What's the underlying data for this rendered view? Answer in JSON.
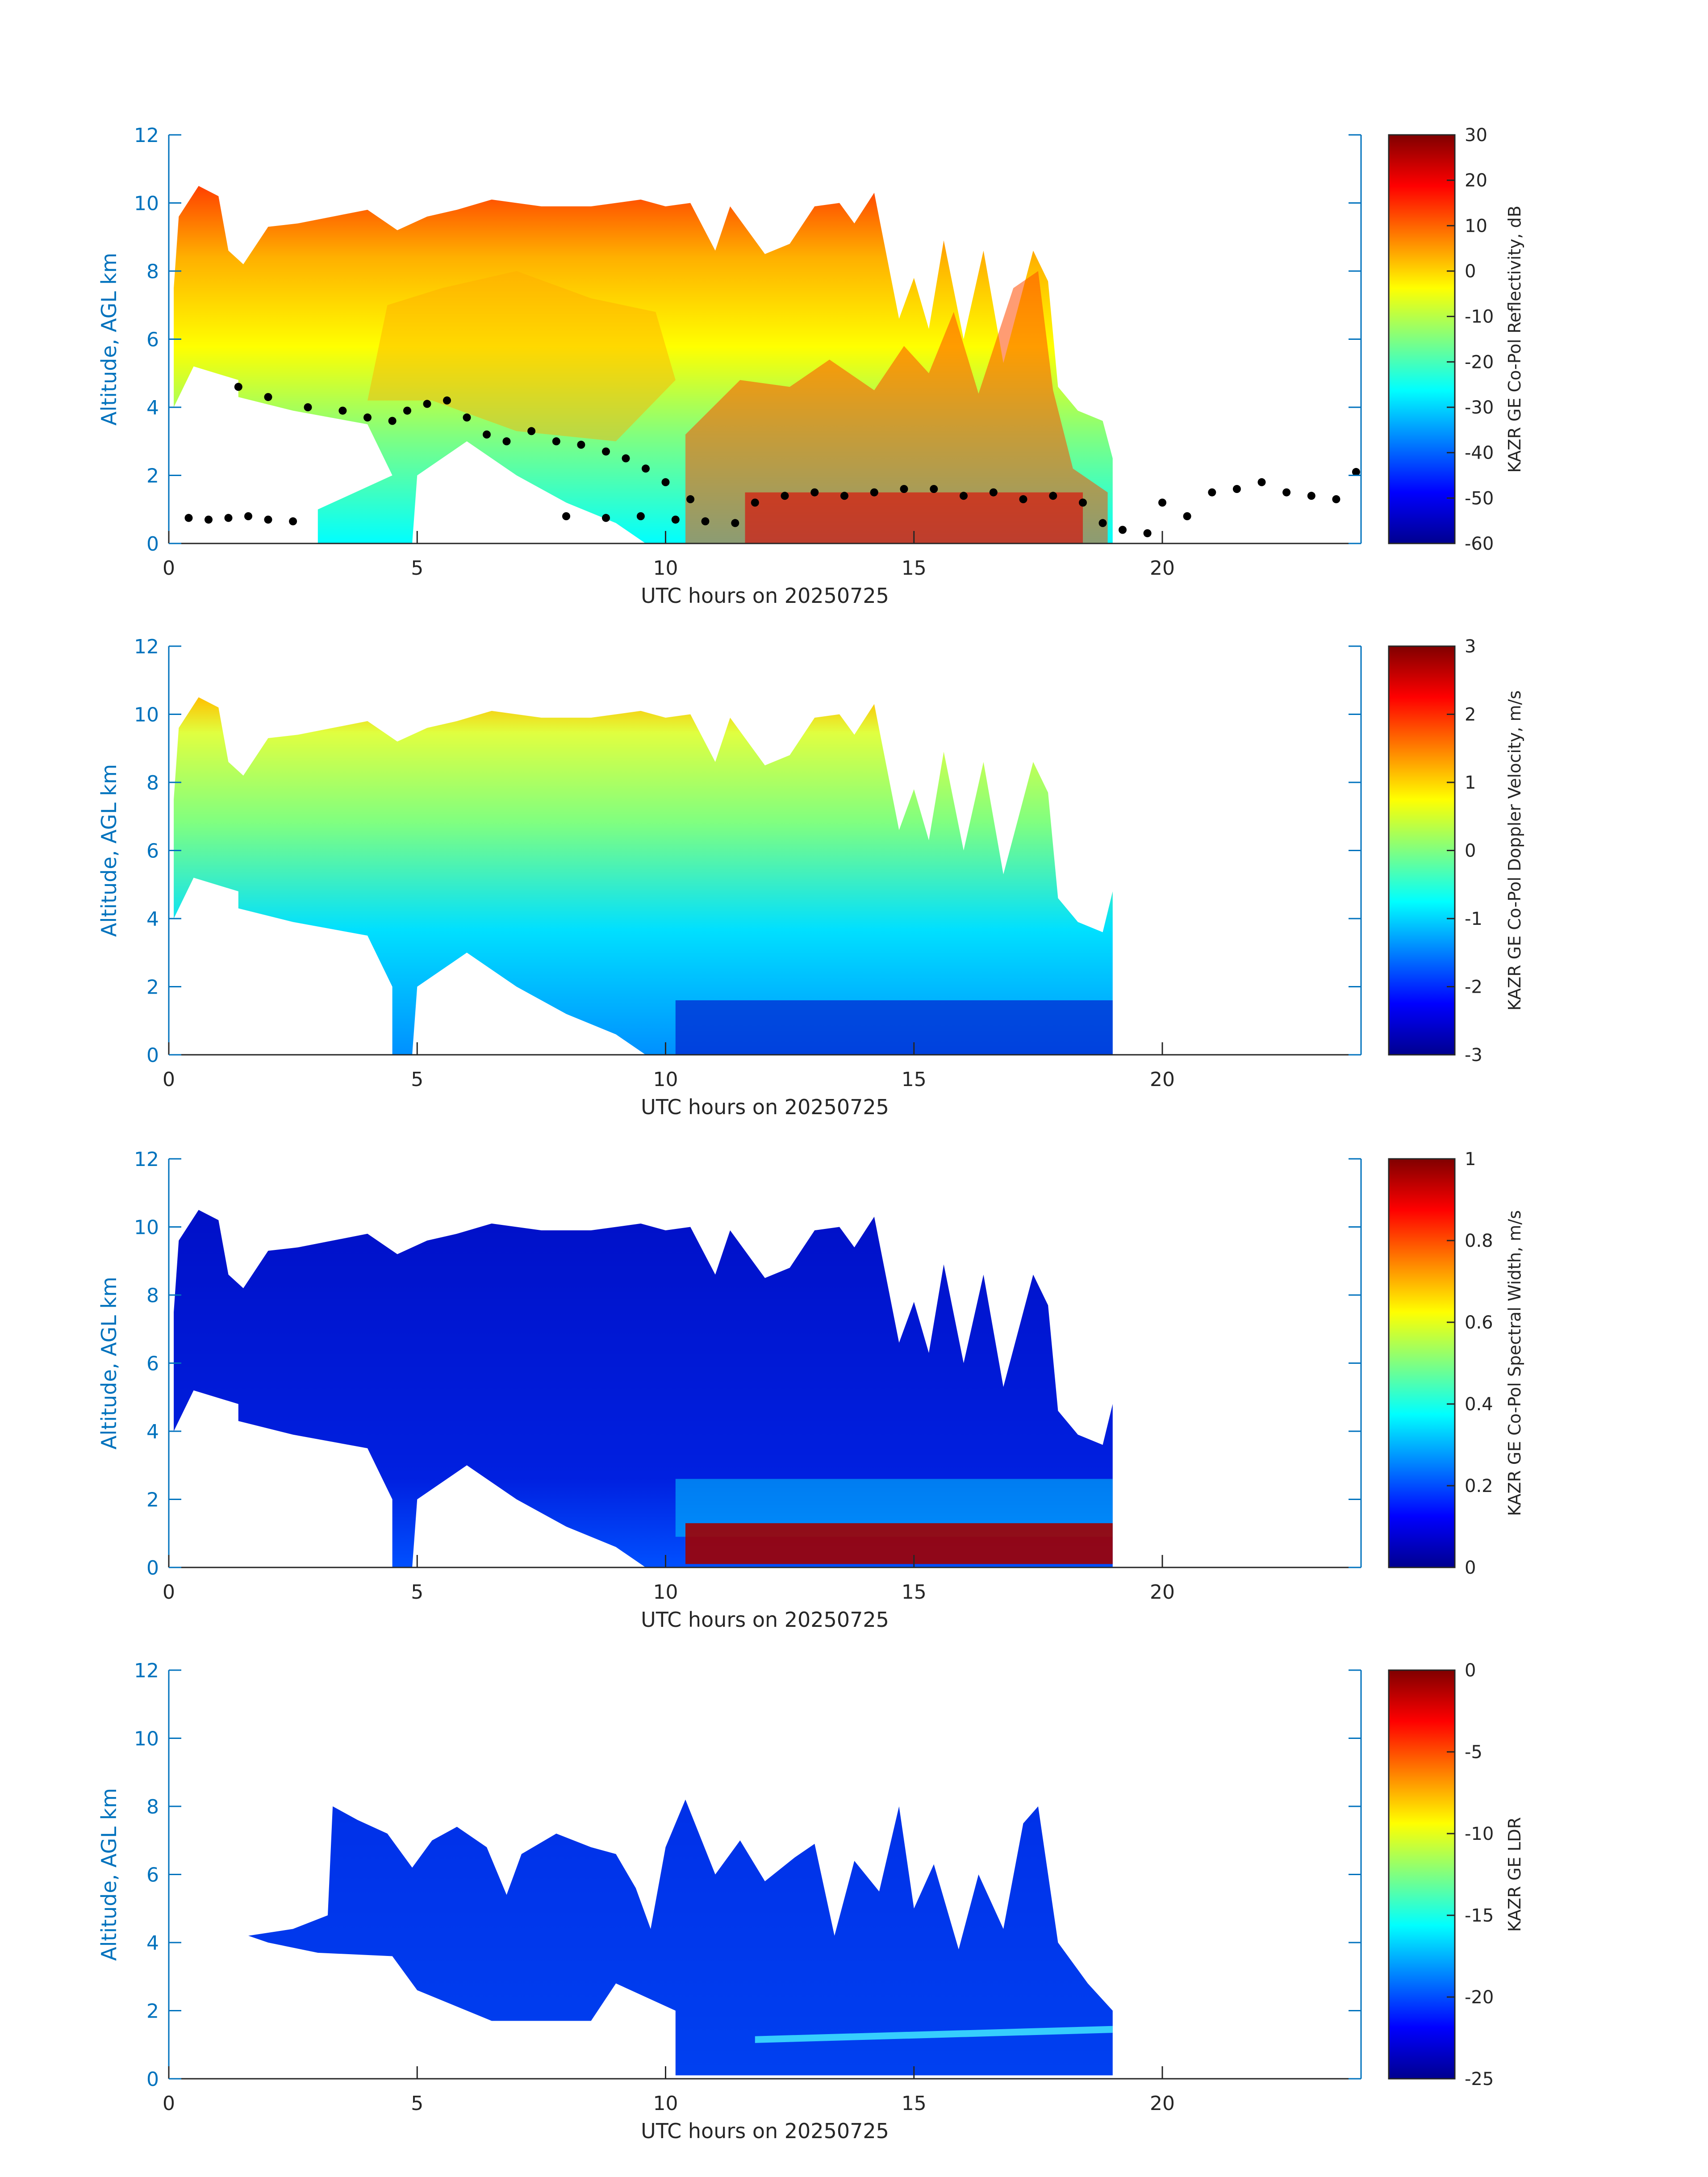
{
  "figure": {
    "colors": {
      "axis": "#0072BD",
      "text": "#262626",
      "background": "#ffffff",
      "overlay_points": "#000000"
    },
    "colormap": "jet"
  },
  "chart_data": [
    {
      "type": "heatmap",
      "title": "",
      "xlabel": "UTC hours on 20250725",
      "ylabel": "Altitude, AGL km",
      "xlim": [
        0,
        24
      ],
      "ylim": [
        0,
        12
      ],
      "xticks": [
        "0",
        "5",
        "10",
        "15",
        "20"
      ],
      "yticks": [
        "0",
        "2",
        "4",
        "6",
        "8",
        "10",
        "12"
      ],
      "colorbar": {
        "label": "KAZR GE Co-Pol Reflectivity, dB",
        "range": [
          -60,
          30
        ],
        "ticks": [
          "30",
          "20",
          "10",
          "0",
          "-10",
          "-20",
          "-30",
          "-40",
          "-50",
          "-60"
        ]
      },
      "grid": false,
      "overlay": {
        "type": "scatter",
        "description_key": "cloud-base points",
        "points": [
          [
            0.4,
            0.75
          ],
          [
            0.8,
            0.7
          ],
          [
            1.2,
            0.75
          ],
          [
            1.6,
            0.8
          ],
          [
            2.0,
            0.7
          ],
          [
            2.5,
            0.65
          ],
          [
            1.4,
            4.6
          ],
          [
            2.0,
            4.3
          ],
          [
            2.8,
            4.0
          ],
          [
            3.5,
            3.9
          ],
          [
            4.0,
            3.7
          ],
          [
            4.5,
            3.6
          ],
          [
            4.8,
            3.9
          ],
          [
            5.2,
            4.1
          ],
          [
            5.6,
            4.2
          ],
          [
            6.0,
            3.7
          ],
          [
            6.4,
            3.2
          ],
          [
            6.8,
            3.0
          ],
          [
            7.3,
            3.3
          ],
          [
            7.8,
            3.0
          ],
          [
            8.3,
            2.9
          ],
          [
            8.8,
            2.7
          ],
          [
            9.2,
            2.5
          ],
          [
            9.6,
            2.2
          ],
          [
            10.0,
            1.8
          ],
          [
            10.5,
            1.3
          ],
          [
            8.0,
            0.8
          ],
          [
            8.8,
            0.75
          ],
          [
            9.5,
            0.8
          ],
          [
            10.2,
            0.7
          ],
          [
            10.8,
            0.65
          ],
          [
            11.4,
            0.6
          ],
          [
            11.8,
            1.2
          ],
          [
            12.4,
            1.4
          ],
          [
            13.0,
            1.5
          ],
          [
            13.6,
            1.4
          ],
          [
            14.2,
            1.5
          ],
          [
            14.8,
            1.6
          ],
          [
            15.4,
            1.6
          ],
          [
            16.0,
            1.4
          ],
          [
            16.6,
            1.5
          ],
          [
            17.2,
            1.3
          ],
          [
            17.8,
            1.4
          ],
          [
            18.4,
            1.2
          ],
          [
            18.8,
            0.6
          ],
          [
            19.2,
            0.4
          ],
          [
            19.7,
            0.3
          ],
          [
            20.0,
            1.2
          ],
          [
            20.5,
            0.8
          ],
          [
            21.0,
            1.5
          ],
          [
            21.5,
            1.6
          ],
          [
            22.0,
            1.8
          ],
          [
            22.5,
            1.5
          ],
          [
            23.0,
            1.4
          ],
          [
            23.5,
            1.3
          ],
          [
            23.9,
            2.1
          ]
        ]
      }
    },
    {
      "type": "heatmap",
      "title": "",
      "xlabel": "UTC hours on 20250725",
      "ylabel": "Altitude, AGL km",
      "xlim": [
        0,
        24
      ],
      "ylim": [
        0,
        12
      ],
      "xticks": [
        "0",
        "5",
        "10",
        "15",
        "20"
      ],
      "yticks": [
        "0",
        "2",
        "4",
        "6",
        "8",
        "10",
        "12"
      ],
      "colorbar": {
        "label": "KAZR GE Co-Pol Doppler Velocity, m/s",
        "range": [
          -3,
          3
        ],
        "ticks": [
          "3",
          "2",
          "1",
          "0",
          "-1",
          "-2",
          "-3"
        ]
      },
      "grid": false
    },
    {
      "type": "heatmap",
      "title": "",
      "xlabel": "UTC hours on 20250725",
      "ylabel": "Altitude, AGL km",
      "xlim": [
        0,
        24
      ],
      "ylim": [
        0,
        12
      ],
      "xticks": [
        "0",
        "5",
        "10",
        "15",
        "20"
      ],
      "yticks": [
        "0",
        "2",
        "4",
        "6",
        "8",
        "10",
        "12"
      ],
      "colorbar": {
        "label": "KAZR GE Co-Pol Spectral Width, m/s",
        "range": [
          0,
          1
        ],
        "ticks": [
          "1",
          "0.8",
          "0.6",
          "0.4",
          "0.2",
          "0"
        ]
      },
      "grid": false
    },
    {
      "type": "heatmap",
      "title": "",
      "xlabel": "UTC hours on 20250725",
      "ylabel": "Altitude, AGL km",
      "xlim": [
        0,
        24
      ],
      "ylim": [
        0,
        12
      ],
      "xticks": [
        "0",
        "5",
        "10",
        "15",
        "20"
      ],
      "yticks": [
        "0",
        "2",
        "4",
        "6",
        "8",
        "10",
        "12"
      ],
      "colorbar": {
        "label": "KAZR GE LDR",
        "range": [
          -25,
          0
        ],
        "ticks": [
          "0",
          "-5",
          "-10",
          "-15",
          "-20",
          "-25"
        ]
      },
      "grid": false
    }
  ]
}
